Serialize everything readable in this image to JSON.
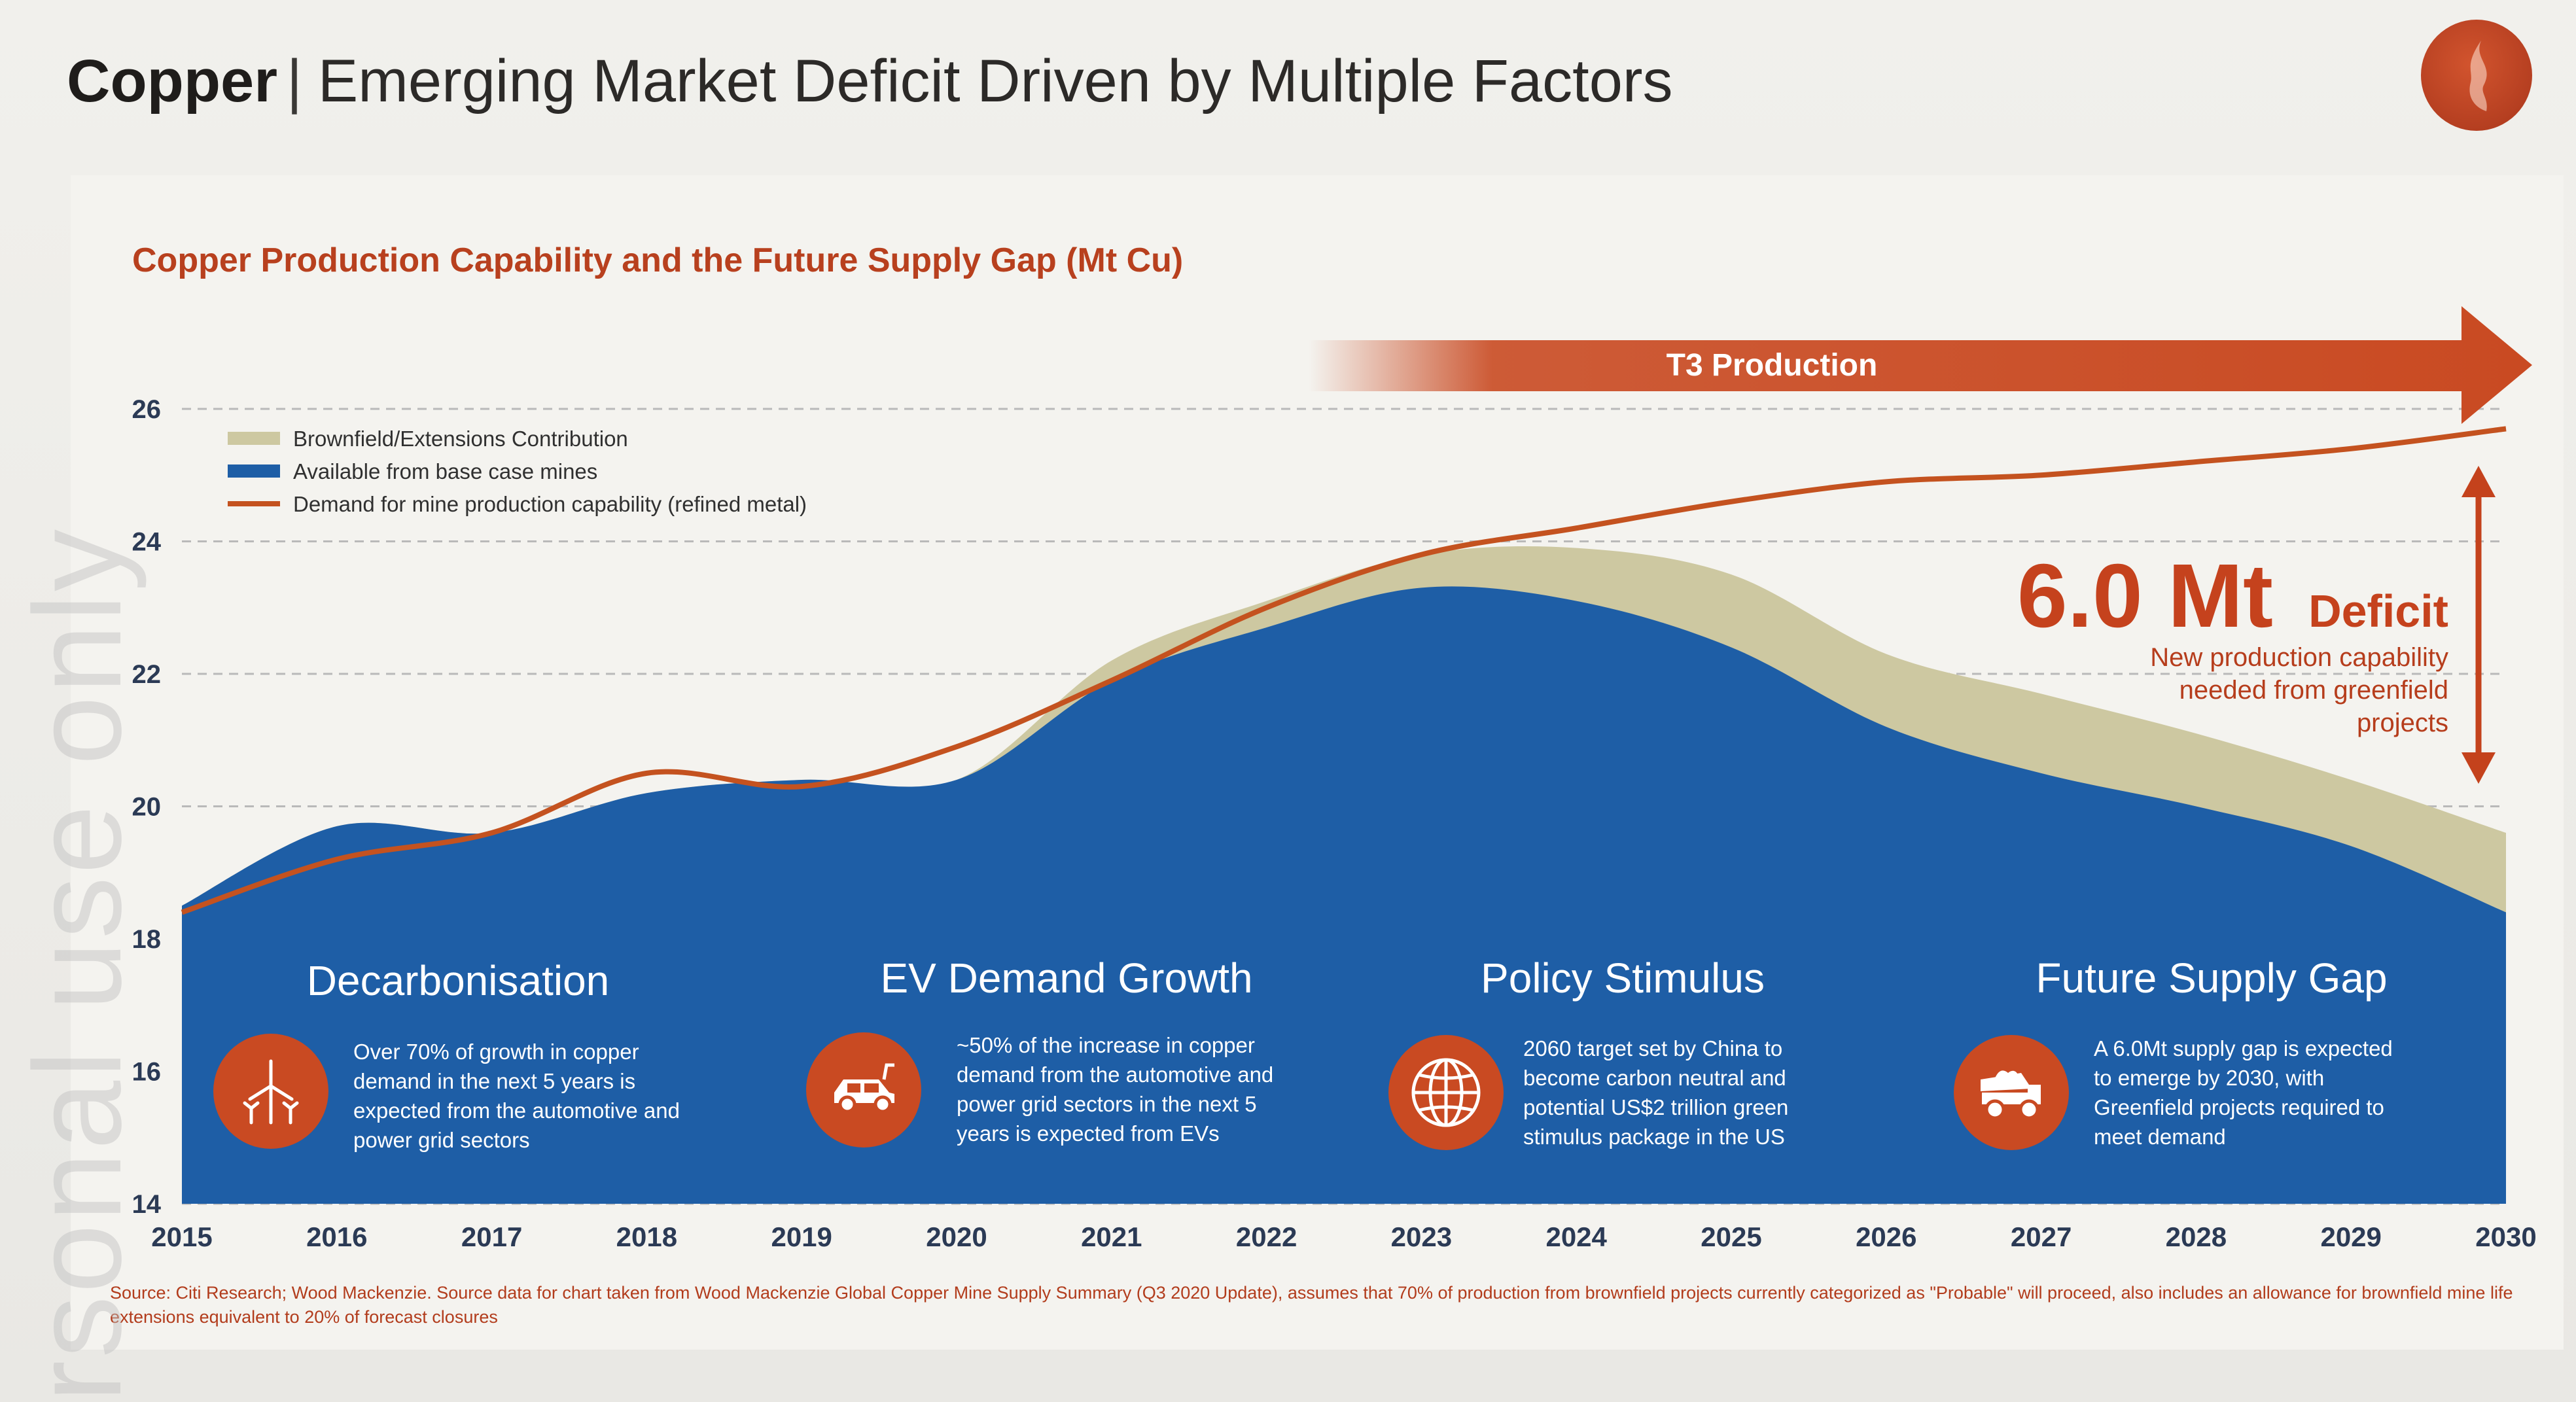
{
  "header": {
    "title_bold": "Copper",
    "title_sep": "|",
    "title_rest": "Emerging Market Deficit Driven by Multiple Factors"
  },
  "watermark": "rsonal use only",
  "chart_data": {
    "type": "area",
    "title": "Copper Production Capability and the Future Supply Gap (Mt Cu)",
    "x": [
      2015,
      2016,
      2017,
      2018,
      2019,
      2020,
      2021,
      2022,
      2023,
      2024,
      2025,
      2026,
      2027,
      2028,
      2029,
      2030
    ],
    "x_ticks": [
      "2015",
      "2016",
      "2017",
      "2018",
      "2019",
      "2020",
      "2021",
      "2022",
      "2023",
      "2024",
      "2025",
      "2026",
      "2027",
      "2028",
      "2029",
      "2030"
    ],
    "ylim": [
      14,
      26
    ],
    "y_ticks": [
      "14",
      "16",
      "18",
      "20",
      "22",
      "24",
      "26"
    ],
    "grid": "horizontal dashed",
    "legend_placement": "top-left",
    "series": [
      {
        "name": "Available from base case mines",
        "color": "#1e5ea6",
        "values": [
          18.5,
          19.7,
          19.6,
          20.2,
          20.4,
          20.4,
          21.9,
          22.7,
          23.3,
          23.1,
          22.4,
          21.2,
          20.5,
          20.0,
          19.4,
          18.4
        ]
      },
      {
        "name": "Brownfield/Extensions Contribution",
        "color": "#cdc8a1",
        "values": [
          18.5,
          19.7,
          19.6,
          20.2,
          20.4,
          20.4,
          22.2,
          23.1,
          23.8,
          23.9,
          23.5,
          22.3,
          21.7,
          21.1,
          20.4,
          19.6
        ]
      },
      {
        "name": "Demand for mine production capability (refined metal)",
        "color": "#c4521f",
        "values": [
          18.4,
          19.2,
          19.6,
          20.5,
          20.3,
          20.9,
          21.9,
          23.0,
          23.8,
          24.2,
          24.6,
          24.9,
          25.0,
          25.2,
          25.4,
          25.7
        ]
      }
    ],
    "annotations": {
      "t3_label": "T3 Production",
      "deficit_value": "6.0 Mt",
      "deficit_word": "Deficit",
      "deficit_sub": [
        "New production capability",
        "needed from greenfield",
        "projects"
      ]
    }
  },
  "drivers": [
    {
      "title": "Decarbonisation",
      "icon": "wind-turbine-icon",
      "text": [
        "Over 70% of growth in copper",
        "demand in the next 5 years is",
        "expected from the automotive and",
        "power grid sectors"
      ]
    },
    {
      "title": "EV Demand Growth",
      "icon": "electric-car-icon",
      "text": [
        "~50% of the increase in copper",
        "demand from the automotive and",
        "power grid sectors in the next 5",
        "years is expected from EVs"
      ]
    },
    {
      "title": "Policy Stimulus",
      "icon": "globe-icon",
      "text": [
        "2060 target set by China to",
        "become carbon neutral and",
        "potential US$2 trillion green",
        "stimulus package in the US"
      ]
    },
    {
      "title": "Future Supply Gap",
      "icon": "mining-truck-icon",
      "text": [
        "A 6.0Mt supply gap is expected",
        "to emerge by 2030, with",
        "Greenfield projects required to",
        "meet demand"
      ]
    }
  ],
  "source": "Source: Citi Research; Wood Mackenzie. Source data for chart taken from Wood Mackenzie Global Copper Mine Supply Summary (Q3 2020 Update), assumes that 70% of production from brownfield projects currently categorized as \"Probable\" will proceed, also includes an allowance for brownfield mine life extensions equivalent to 20% of forecast closures",
  "colors": {
    "accent": "#c94a22",
    "base_mines": "#1e5ea6",
    "brownfield": "#cdc8a1",
    "demand": "#c4521f"
  }
}
